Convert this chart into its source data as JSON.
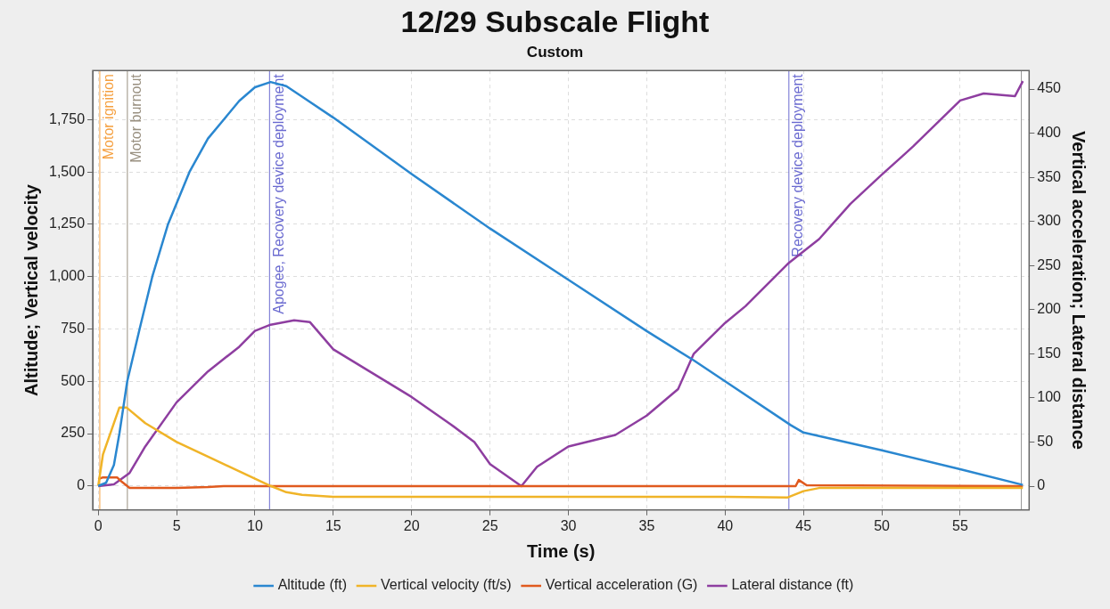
{
  "chart_data": {
    "type": "line",
    "title": "12/29 Subscale Flight",
    "subtitle": "Custom",
    "xlabel": "Time (s)",
    "ylabel": "Altitude; Vertical velocity",
    "y2label": "Vertical acceleration; Lateral distance",
    "xlim": [
      -0.35,
      59.4
    ],
    "xticks": [
      0,
      5,
      10,
      15,
      20,
      25,
      30,
      35,
      40,
      45,
      50,
      55
    ],
    "ylim": [
      -115,
      1985
    ],
    "yticks": [
      0,
      250,
      500,
      750,
      {
        "value": 1000,
        "label": "1,000"
      },
      {
        "value": 1250,
        "label": "1,250"
      },
      {
        "value": 1500,
        "label": "1,500"
      },
      {
        "value": 1750,
        "label": "1,750"
      }
    ],
    "y2lim": [
      -27,
      471
    ],
    "y2ticks": [
      0,
      50,
      100,
      150,
      200,
      250,
      300,
      350,
      400,
      450
    ],
    "grid": true,
    "legend": "bottom",
    "marker": "none",
    "line_style": "solid",
    "series": [
      {
        "name": "Altitude (ft)",
        "color": "#2a87d0",
        "x": [
          0,
          0.5,
          1,
          1.35,
          1.85,
          2.64,
          3.45,
          4.45,
          5.82,
          7,
          8,
          9,
          10,
          11,
          12,
          13,
          15,
          20,
          25,
          30,
          35,
          38,
          40,
          44.2,
          45,
          50,
          55,
          59
        ],
        "values": [
          0,
          15,
          100,
          250,
          500,
          750,
          1000,
          1250,
          1500,
          1660,
          1750,
          1840,
          1905,
          1930,
          1910,
          1860,
          1760,
          1490,
          1230,
          985,
          740,
          600,
          500,
          290,
          255,
          170,
          80,
          5
        ]
      },
      {
        "name": "Vertical velocity (ft/s)",
        "color": "#f0b428",
        "x": [
          0,
          0.3,
          1.35,
          1.8,
          3,
          5,
          7,
          9,
          11,
          12,
          13,
          15,
          20,
          30,
          40,
          44,
          45,
          46,
          59
        ],
        "values": [
          0,
          150,
          375,
          375,
          300,
          210,
          140,
          70,
          0,
          -30,
          -42,
          -52,
          -52,
          -52,
          -52,
          -55,
          -25,
          -10,
          -10
        ]
      },
      {
        "name": "Vertical acceleration (G)",
        "color": "#e05a1e",
        "axis": "y2",
        "x": [
          0,
          0.3,
          1.2,
          1.5,
          2,
          5,
          7,
          8,
          15,
          44.5,
          44.7,
          45.2,
          59
        ],
        "values": [
          8,
          10,
          10,
          5,
          -2,
          -2,
          -1,
          0,
          0,
          0,
          7,
          1,
          0
        ]
      },
      {
        "name": "Lateral distance (ft)",
        "color": "#8e3ea0",
        "axis": "y2",
        "x": [
          0,
          1,
          2,
          3,
          5,
          7,
          9,
          10,
          11,
          12.5,
          13.5,
          15,
          17.5,
          20,
          22.5,
          24,
          25,
          27,
          28,
          30,
          33,
          35,
          37,
          38,
          40,
          41.3,
          44,
          46,
          48,
          50,
          52,
          55,
          56.5,
          58.5,
          59
        ],
        "values": [
          0,
          2,
          15,
          45,
          95,
          130,
          158,
          176,
          183,
          188,
          186,
          155,
          128,
          101,
          70,
          50,
          25,
          0,
          22,
          45,
          58,
          80,
          110,
          150,
          185,
          204,
          252,
          280,
          320,
          353,
          385,
          437,
          445,
          442,
          459
        ]
      }
    ],
    "ref_lines": [
      {
        "axis": "x",
        "value": 0.1,
        "label": "Motor ignition",
        "color": "#f5a040"
      },
      {
        "axis": "x",
        "value": 1.86,
        "label": "Motor burnout",
        "color": "#999080"
      },
      {
        "axis": "x",
        "value": 10.93,
        "label": "Apogee, Recovery device deployment",
        "color": "#6a6ad0"
      },
      {
        "axis": "x",
        "value": 44.07,
        "label": "Recovery device deployment",
        "color": "#6a6ad0"
      },
      {
        "axis": "x",
        "value": 58.9,
        "label": null,
        "color": "#999999"
      }
    ]
  }
}
